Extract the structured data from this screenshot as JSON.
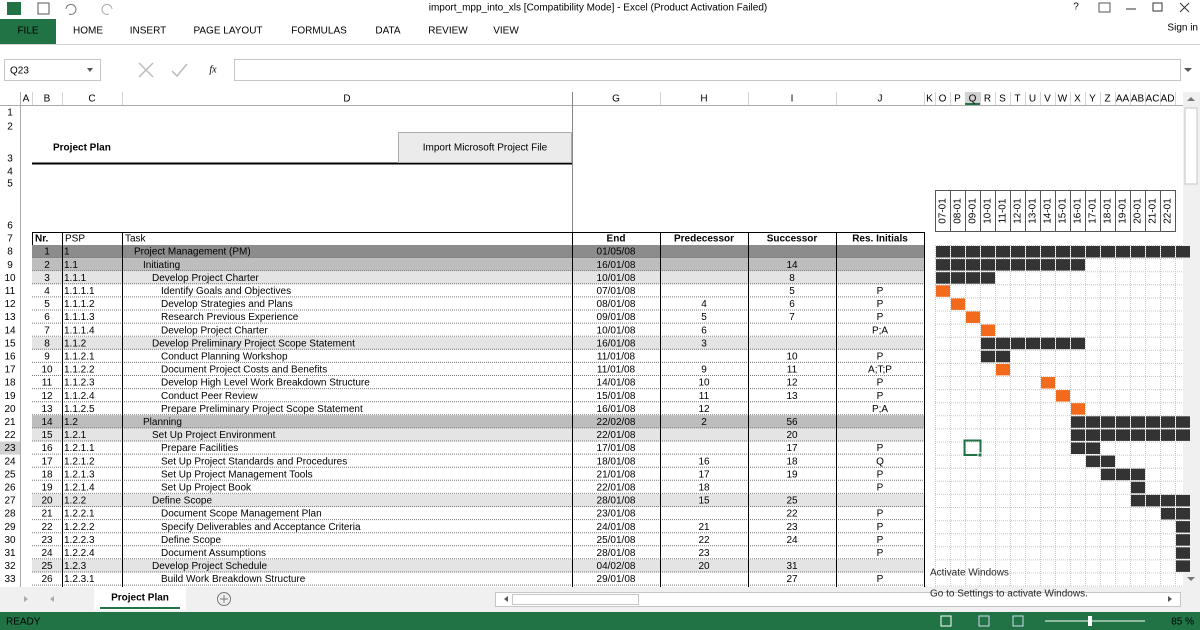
{
  "title_bar": {
    "title": "import_mpp_into_xls  [Compatibility Mode] - Excel (Product Activation Failed)",
    "help": "?"
  },
  "ribbon": {
    "tabs": [
      "FILE",
      "HOME",
      "INSERT",
      "PAGE LAYOUT",
      "FORMULAS",
      "DATA",
      "REVIEW",
      "VIEW"
    ],
    "sign_in": "Sign in"
  },
  "formula_bar": {
    "name_box": "Q23",
    "fx": "fx"
  },
  "sheet": {
    "column_headers": [
      "A",
      "B",
      "C",
      "D",
      "G",
      "H",
      "I",
      "J",
      "K",
      "O",
      "P",
      "Q",
      "R",
      "S",
      "T",
      "U",
      "V",
      "W",
      "X",
      "Y",
      "Z",
      "AA",
      "AB",
      "AC",
      "AD"
    ],
    "row_headers": [
      1,
      2,
      3,
      4,
      5,
      6,
      7,
      8,
      9,
      10,
      11,
      12,
      13,
      14,
      15,
      16,
      17,
      18,
      19,
      20,
      21,
      22,
      23,
      24,
      25,
      26,
      27,
      28,
      29,
      30,
      31,
      32,
      33
    ],
    "title": "Project Plan",
    "button": "Import Microsoft Project File",
    "gantt_dates": [
      "07-01",
      "08-01",
      "09-01",
      "10-01",
      "11-01",
      "12-01",
      "13-01",
      "14-01",
      "15-01",
      "16-01",
      "17-01",
      "18-01",
      "19-01",
      "20-01",
      "21-01",
      "22-01"
    ],
    "table_header": {
      "nr": "Nr.",
      "psp": "PSP",
      "task": "Task",
      "end": "End",
      "predecessor": "Predecessor",
      "successor": "Successor",
      "res": "Res. Initials"
    },
    "rows": [
      {
        "nr": 1,
        "psp": "1",
        "task": "Project Management (PM)",
        "end": "01/05/08"
      },
      {
        "nr": 2,
        "psp": "1.1",
        "task": "Initiating",
        "end": "16/01/08",
        "successor": 14
      },
      {
        "nr": 3,
        "psp": "1.1.1",
        "task": "Develop Project Charter",
        "end": "10/01/08",
        "successor": 8
      },
      {
        "nr": 4,
        "psp": "1.1.1.1",
        "task": "Identify Goals and Objectives",
        "end": "07/01/08",
        "successor": 5,
        "res": "P"
      },
      {
        "nr": 5,
        "psp": "1.1.1.2",
        "task": "Develop Strategies and Plans",
        "end": "08/01/08",
        "predecessor": 4,
        "successor": 6,
        "res": "P"
      },
      {
        "nr": 6,
        "psp": "1.1.1.3",
        "task": "Research Previous Experience",
        "end": "09/01/08",
        "predecessor": 5,
        "successor": 7,
        "res": "P"
      },
      {
        "nr": 7,
        "psp": "1.1.1.4",
        "task": "Develop Project Charter",
        "end": "10/01/08",
        "predecessor": 6,
        "res": "P;A"
      },
      {
        "nr": 8,
        "psp": "1.1.2",
        "task": "Develop Preliminary Project Scope Statement",
        "end": "16/01/08",
        "predecessor": 3
      },
      {
        "nr": 9,
        "psp": "1.1.2.1",
        "task": "Conduct Planning Workshop",
        "end": "11/01/08",
        "successor": 10,
        "res": "P"
      },
      {
        "nr": 10,
        "psp": "1.1.2.2",
        "task": "Document Project Costs and Benefits",
        "end": "11/01/08",
        "predecessor": 9,
        "successor": 11,
        "res": "A;T;P"
      },
      {
        "nr": 11,
        "psp": "1.1.2.3",
        "task": "Develop High Level Work Breakdown Structure",
        "end": "14/01/08",
        "predecessor": 10,
        "successor": 12,
        "res": "P"
      },
      {
        "nr": 12,
        "psp": "1.1.2.4",
        "task": "Conduct Peer Review",
        "end": "15/01/08",
        "predecessor": 11,
        "successor": 13,
        "res": "P"
      },
      {
        "nr": 13,
        "psp": "1.1.2.5",
        "task": "Prepare Preliminary Project Scope Statement",
        "end": "16/01/08",
        "predecessor": 12,
        "res": "P;A"
      },
      {
        "nr": 14,
        "psp": "1.2",
        "task": "Planning",
        "end": "22/02/08",
        "predecessor": 2,
        "successor": 56
      },
      {
        "nr": 15,
        "psp": "1.2.1",
        "task": "Set Up Project Environment",
        "end": "22/01/08",
        "successor": 20
      },
      {
        "nr": 16,
        "psp": "1.2.1.1",
        "task": "Prepare Facilities",
        "end": "17/01/08",
        "successor": 17,
        "res": "P"
      },
      {
        "nr": 17,
        "psp": "1.2.1.2",
        "task": "Set Up Project Standards and Procedures",
        "end": "18/01/08",
        "predecessor": 16,
        "successor": 18,
        "res": "Q"
      },
      {
        "nr": 18,
        "psp": "1.2.1.3",
        "task": "Set Up Project Management Tools",
        "end": "21/01/08",
        "predecessor": 17,
        "successor": 19,
        "res": "P"
      },
      {
        "nr": 19,
        "psp": "1.2.1.4",
        "task": "Set Up Project Book",
        "end": "22/01/08",
        "predecessor": 18,
        "res": "P"
      },
      {
        "nr": 20,
        "psp": "1.2.2",
        "task": "Define Scope",
        "end": "28/01/08",
        "predecessor": 15,
        "successor": 25
      },
      {
        "nr": 21,
        "psp": "1.2.2.1",
        "task": "Document Scope Management Plan",
        "end": "23/01/08",
        "successor": 22,
        "res": "P"
      },
      {
        "nr": 22,
        "psp": "1.2.2.2",
        "task": "Specify Deliverables and Acceptance Criteria",
        "end": "24/01/08",
        "predecessor": 21,
        "successor": 23,
        "res": "P"
      },
      {
        "nr": 23,
        "psp": "1.2.2.3",
        "task": "Define Scope",
        "end": "25/01/08",
        "predecessor": 22,
        "successor": 24,
        "res": "P"
      },
      {
        "nr": 24,
        "psp": "1.2.2.4",
        "task": "Document Assumptions",
        "end": "28/01/08",
        "predecessor": 23,
        "res": "P"
      },
      {
        "nr": 25,
        "psp": "1.2.3",
        "task": "Develop Project Schedule",
        "end": "04/02/08",
        "predecessor": 20,
        "successor": 31
      },
      {
        "nr": 26,
        "psp": "1.2.3.1",
        "task": "Build Work Breakdown Structure",
        "end": "29/01/08",
        "successor": 27,
        "res": "P"
      }
    ]
  },
  "sheet_tabs": {
    "active": "Project Plan"
  },
  "status_bar": {
    "status": "READY",
    "zoom": "85 %"
  },
  "watermark": {
    "title": "Activate Windows",
    "text": "Go to Settings to activate Windows."
  }
}
